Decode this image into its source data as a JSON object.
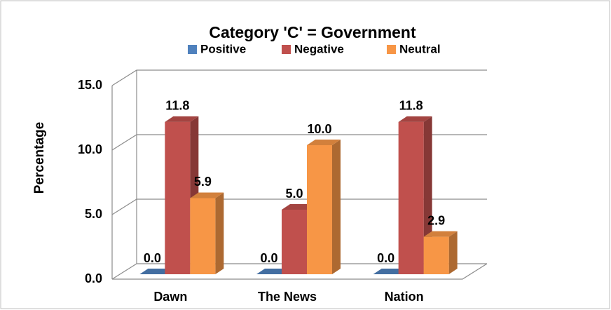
{
  "chart_data": {
    "type": "bar3d",
    "title": "Category 'C' = Government",
    "y_axis_label": "Percentage",
    "categories": [
      "Dawn",
      "The News",
      "Nation"
    ],
    "series": [
      {
        "name": "Positive",
        "color": "#4f81bd",
        "values": [
          0,
          0,
          0
        ],
        "value_labels": [
          "0.0",
          "0.0",
          "0.0"
        ]
      },
      {
        "name": "Negative",
        "color": "#c0504d",
        "values": [
          11.8,
          5.0,
          11.8
        ],
        "value_labels": [
          "11.8",
          "5.0",
          "11.8"
        ]
      },
      {
        "name": "Neutral",
        "color": "#f79646",
        "values": [
          5.9,
          10.0,
          2.9
        ],
        "value_labels": [
          "5.9",
          "10.0",
          "2.9"
        ]
      }
    ],
    "ylim": [
      0,
      15
    ],
    "yticks": [
      {
        "value": 0,
        "label": "0.0"
      },
      {
        "value": 5,
        "label": "5.0"
      },
      {
        "value": 10,
        "label": "10.0"
      },
      {
        "value": 15,
        "label": "15.0"
      }
    ],
    "grid": true,
    "legend": "top"
  }
}
